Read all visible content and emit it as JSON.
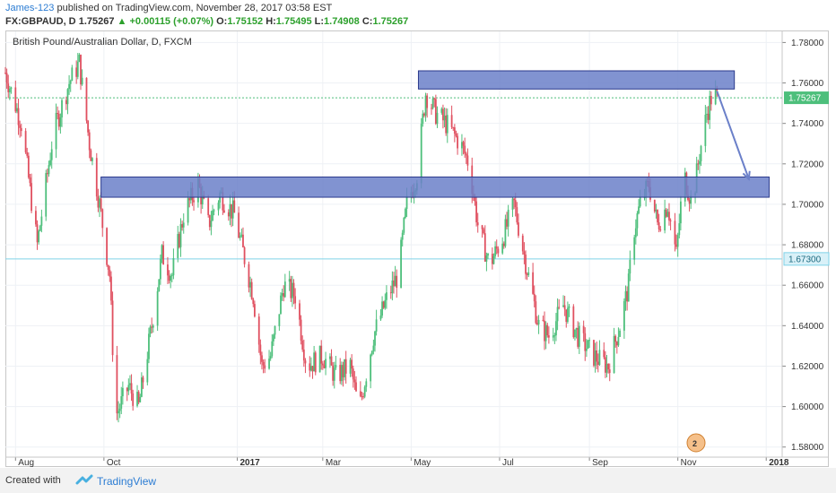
{
  "header": {
    "author": "James-123",
    "published_text": "published on TradingView.com, November 28, 2017 03:58 EST",
    "symbol": "FX:GBPAUD, D",
    "last_price": "1.75267",
    "change": "▲ +0.00115 (+0.07%)",
    "ohlc_open_label": "O:",
    "ohlc_open": "1.75152",
    "ohlc_high_label": "H:",
    "ohlc_high": "1.75495",
    "ohlc_low_label": "L:",
    "ohlc_low": "1.74908",
    "ohlc_close_label": "C:",
    "ohlc_close": "1.75267"
  },
  "footer": {
    "created_with": "Created with",
    "brand": "TradingView"
  },
  "colors": {
    "up": "#4dbf7b",
    "down": "#e05060",
    "zone_fill": "#6b80c9",
    "zone_stroke": "#2b3a8c",
    "arrow": "#6b80c9",
    "last_price_line": "#4dbf7b",
    "level_line": "#7fd3e8"
  },
  "chart_data": {
    "type": "candlestick",
    "title": "British Pound/Australian Dollar, D, FXCM",
    "y_axis_labels": [
      "1.78000",
      "1.76000",
      "1.74000",
      "1.72000",
      "1.70000",
      "1.68000",
      "1.66000",
      "1.64000",
      "1.62000",
      "1.60000",
      "1.58000"
    ],
    "x_axis_labels": [
      "Aug",
      "Oct",
      "2017",
      "Mar",
      "May",
      "Jul",
      "Sep",
      "Nov",
      "2018"
    ],
    "ylim": [
      1.575,
      1.7855
    ],
    "date_range": [
      "2016-07-25",
      "2018-01-12"
    ],
    "last_price_tag": "1.75267",
    "last_price": 1.75267,
    "level_tag": "1.67300",
    "level": 1.673,
    "close_path": [
      {
        "date": "2016-07-25",
        "value": 1.765
      },
      {
        "date": "2016-08-05",
        "value": 1.74
      },
      {
        "date": "2016-08-16",
        "value": 1.68
      },
      {
        "date": "2016-08-27",
        "value": 1.735
      },
      {
        "date": "2016-09-07",
        "value": 1.76
      },
      {
        "date": "2016-09-14",
        "value": 1.77
      },
      {
        "date": "2016-09-21",
        "value": 1.73
      },
      {
        "date": "2016-09-28",
        "value": 1.7
      },
      {
        "date": "2016-10-05",
        "value": 1.665
      },
      {
        "date": "2016-10-09",
        "value": 1.595
      },
      {
        "date": "2016-10-18",
        "value": 1.61
      },
      {
        "date": "2016-10-25",
        "value": 1.6
      },
      {
        "date": "2016-11-03",
        "value": 1.64
      },
      {
        "date": "2016-11-10",
        "value": 1.675
      },
      {
        "date": "2016-11-17",
        "value": 1.665
      },
      {
        "date": "2016-11-25",
        "value": 1.695
      },
      {
        "date": "2016-12-05",
        "value": 1.71
      },
      {
        "date": "2016-12-12",
        "value": 1.69
      },
      {
        "date": "2016-12-20",
        "value": 1.705
      },
      {
        "date": "2016-12-30",
        "value": 1.695
      },
      {
        "date": "2017-01-12",
        "value": 1.655
      },
      {
        "date": "2017-01-18",
        "value": 1.62
      },
      {
        "date": "2017-01-24",
        "value": 1.625
      },
      {
        "date": "2017-02-02",
        "value": 1.66
      },
      {
        "date": "2017-02-10",
        "value": 1.655
      },
      {
        "date": "2017-02-18",
        "value": 1.62
      },
      {
        "date": "2017-03-01",
        "value": 1.625
      },
      {
        "date": "2017-03-10",
        "value": 1.615
      },
      {
        "date": "2017-03-20",
        "value": 1.62
      },
      {
        "date": "2017-03-26",
        "value": 1.598
      },
      {
        "date": "2017-04-05",
        "value": 1.635
      },
      {
        "date": "2017-04-15",
        "value": 1.655
      },
      {
        "date": "2017-04-22",
        "value": 1.665
      },
      {
        "date": "2017-04-28",
        "value": 1.7
      },
      {
        "date": "2017-05-05",
        "value": 1.715
      },
      {
        "date": "2017-05-11",
        "value": 1.755
      },
      {
        "date": "2017-05-18",
        "value": 1.745
      },
      {
        "date": "2017-05-25",
        "value": 1.74
      },
      {
        "date": "2017-06-04",
        "value": 1.73
      },
      {
        "date": "2017-06-10",
        "value": 1.72
      },
      {
        "date": "2017-06-16",
        "value": 1.69
      },
      {
        "date": "2017-06-24",
        "value": 1.67
      },
      {
        "date": "2017-07-04",
        "value": 1.685
      },
      {
        "date": "2017-07-11",
        "value": 1.7
      },
      {
        "date": "2017-07-18",
        "value": 1.675
      },
      {
        "date": "2017-07-28",
        "value": 1.64
      },
      {
        "date": "2017-08-04",
        "value": 1.635
      },
      {
        "date": "2017-08-14",
        "value": 1.65
      },
      {
        "date": "2017-08-24",
        "value": 1.635
      },
      {
        "date": "2017-09-04",
        "value": 1.625
      },
      {
        "date": "2017-09-14",
        "value": 1.62
      },
      {
        "date": "2017-09-22",
        "value": 1.64
      },
      {
        "date": "2017-09-28",
        "value": 1.66
      },
      {
        "date": "2017-10-01",
        "value": 1.685
      },
      {
        "date": "2017-10-06",
        "value": 1.7
      },
      {
        "date": "2017-10-12",
        "value": 1.71
      },
      {
        "date": "2017-10-18",
        "value": 1.69
      },
      {
        "date": "2017-10-25",
        "value": 1.7
      },
      {
        "date": "2017-10-31",
        "value": 1.675
      },
      {
        "date": "2017-11-05",
        "value": 1.715
      },
      {
        "date": "2017-11-11",
        "value": 1.7
      },
      {
        "date": "2017-11-16",
        "value": 1.725
      },
      {
        "date": "2017-11-21",
        "value": 1.745
      },
      {
        "date": "2017-11-25",
        "value": 1.755
      },
      {
        "date": "2017-11-28",
        "value": 1.75267
      }
    ],
    "zones": [
      {
        "name": "resistance",
        "from": "2017-05-06",
        "to": "2017-12-10",
        "low": 1.757,
        "high": 1.766
      },
      {
        "name": "support",
        "from": "2016-09-29",
        "to": "2018-01-03",
        "low": 1.7035,
        "high": 1.7135
      }
    ],
    "projection_arrow": {
      "from_date": "2017-11-28",
      "from_value": 1.756,
      "to_date": "2017-12-20",
      "to_value": 1.7125
    }
  }
}
